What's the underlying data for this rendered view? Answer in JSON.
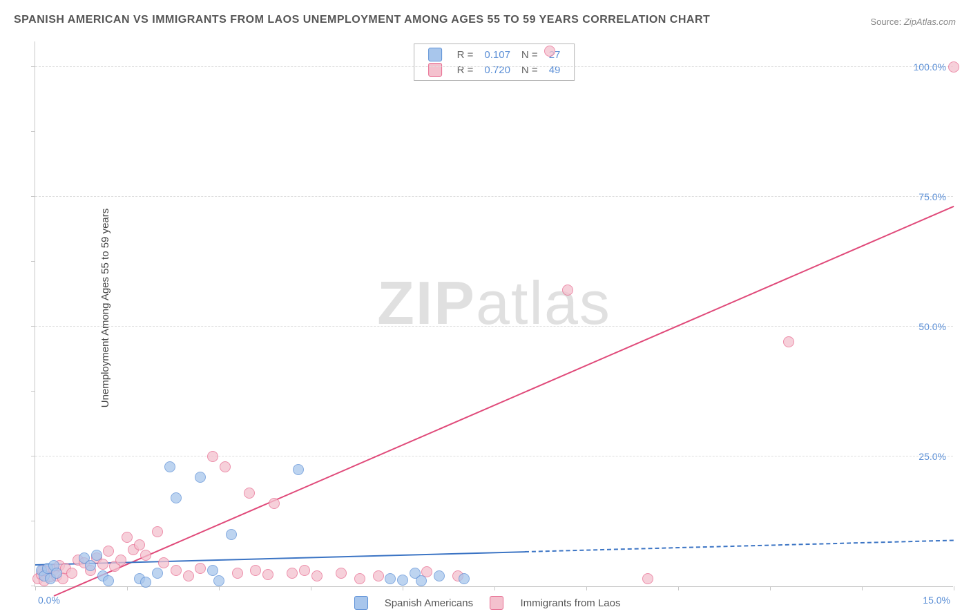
{
  "title": "SPANISH AMERICAN VS IMMIGRANTS FROM LAOS UNEMPLOYMENT AMONG AGES 55 TO 59 YEARS CORRELATION CHART",
  "source_label": "Source:",
  "source_value": "ZipAtlas.com",
  "ylabel": "Unemployment Among Ages 55 to 59 years",
  "watermark_bold": "ZIP",
  "watermark_light": "atlas",
  "chart": {
    "type": "scatter",
    "xlim": [
      0,
      15
    ],
    "ylim": [
      0,
      105
    ],
    "xtick_min_label": "0.0%",
    "xtick_max_label": "15.0%",
    "ytick_labels": [
      "25.0%",
      "50.0%",
      "75.0%",
      "100.0%"
    ],
    "ytick_values": [
      25,
      50,
      75,
      100
    ],
    "xtick_positions": [
      0,
      1.5,
      3.0,
      4.5,
      6.0,
      7.5,
      9.0,
      10.5,
      12.0,
      13.5,
      15.0
    ],
    "ytick_positions": [
      0,
      12.5,
      25,
      37.5,
      50,
      62.5,
      75,
      87.5,
      100
    ],
    "grid_color": "#dddddd",
    "axis_color": "#c6c6c6",
    "background_color": "#ffffff",
    "series": [
      {
        "id": "spanish",
        "label": "Spanish Americans",
        "fill_color": "#a8c6ec",
        "stroke_color": "#5b8fd6",
        "line_color": "#3b74c4",
        "R": "0.107",
        "N": "27",
        "regression": {
          "x1": 0,
          "y1": 4.0,
          "x2": 8.0,
          "y2": 6.5,
          "solid_until_x": 8.0,
          "dash_to_x": 15.0,
          "dash_y2": 8.7
        },
        "points": [
          [
            0.1,
            3.0
          ],
          [
            0.15,
            2.0
          ],
          [
            0.2,
            3.5
          ],
          [
            0.25,
            1.5
          ],
          [
            0.3,
            4.0
          ],
          [
            0.35,
            2.5
          ],
          [
            0.8,
            5.5
          ],
          [
            0.9,
            4.0
          ],
          [
            1.0,
            6.0
          ],
          [
            1.1,
            2.0
          ],
          [
            1.2,
            1.0
          ],
          [
            1.7,
            1.5
          ],
          [
            1.8,
            0.8
          ],
          [
            2.0,
            2.5
          ],
          [
            2.2,
            23.0
          ],
          [
            2.3,
            17.0
          ],
          [
            2.7,
            21.0
          ],
          [
            2.9,
            3.0
          ],
          [
            3.0,
            1.0
          ],
          [
            3.2,
            10.0
          ],
          [
            4.3,
            22.5
          ],
          [
            5.8,
            1.5
          ],
          [
            6.0,
            1.2
          ],
          [
            6.2,
            2.5
          ],
          [
            6.3,
            1.0
          ],
          [
            6.6,
            2.0
          ],
          [
            7.0,
            1.5
          ]
        ]
      },
      {
        "id": "laos",
        "label": "Immigrants from Laos",
        "fill_color": "#f4c1ce",
        "stroke_color": "#e76a8f",
        "line_color": "#e04a7a",
        "R": "0.720",
        "N": "49",
        "regression": {
          "x1": 0.3,
          "y1": -2.0,
          "x2": 15.0,
          "y2": 73.0,
          "solid_until_x": 15.0
        },
        "points": [
          [
            0.05,
            1.5
          ],
          [
            0.1,
            2.2
          ],
          [
            0.12,
            3.0
          ],
          [
            0.15,
            1.0
          ],
          [
            0.2,
            2.8
          ],
          [
            0.25,
            1.8
          ],
          [
            0.3,
            3.2
          ],
          [
            0.35,
            2.0
          ],
          [
            0.4,
            4.0
          ],
          [
            0.45,
            1.5
          ],
          [
            0.5,
            3.5
          ],
          [
            0.6,
            2.5
          ],
          [
            0.7,
            5.0
          ],
          [
            0.8,
            4.5
          ],
          [
            0.9,
            3.0
          ],
          [
            1.0,
            5.5
          ],
          [
            1.1,
            4.2
          ],
          [
            1.2,
            6.8
          ],
          [
            1.3,
            3.8
          ],
          [
            1.4,
            5.0
          ],
          [
            1.5,
            9.5
          ],
          [
            1.6,
            7.0
          ],
          [
            1.7,
            8.0
          ],
          [
            1.8,
            6.0
          ],
          [
            2.0,
            10.5
          ],
          [
            2.1,
            4.5
          ],
          [
            2.3,
            3.0
          ],
          [
            2.5,
            2.0
          ],
          [
            2.7,
            3.5
          ],
          [
            2.9,
            25.0
          ],
          [
            3.1,
            23.0
          ],
          [
            3.3,
            2.5
          ],
          [
            3.5,
            18.0
          ],
          [
            3.6,
            3.0
          ],
          [
            3.8,
            2.2
          ],
          [
            3.9,
            16.0
          ],
          [
            4.2,
            2.5
          ],
          [
            4.4,
            3.0
          ],
          [
            4.6,
            2.0
          ],
          [
            5.0,
            2.5
          ],
          [
            5.3,
            1.5
          ],
          [
            5.6,
            2.0
          ],
          [
            6.4,
            2.8
          ],
          [
            6.9,
            2.0
          ],
          [
            8.4,
            103.0
          ],
          [
            8.7,
            57.0
          ],
          [
            10.0,
            1.5
          ],
          [
            12.3,
            47.0
          ],
          [
            15.0,
            100.0
          ]
        ]
      }
    ],
    "legend_top": {
      "R_label": "R  =",
      "N_label": "N  ="
    },
    "legend_bottom_labels": [
      "Spanish Americans",
      "Immigrants from Laos"
    ]
  }
}
